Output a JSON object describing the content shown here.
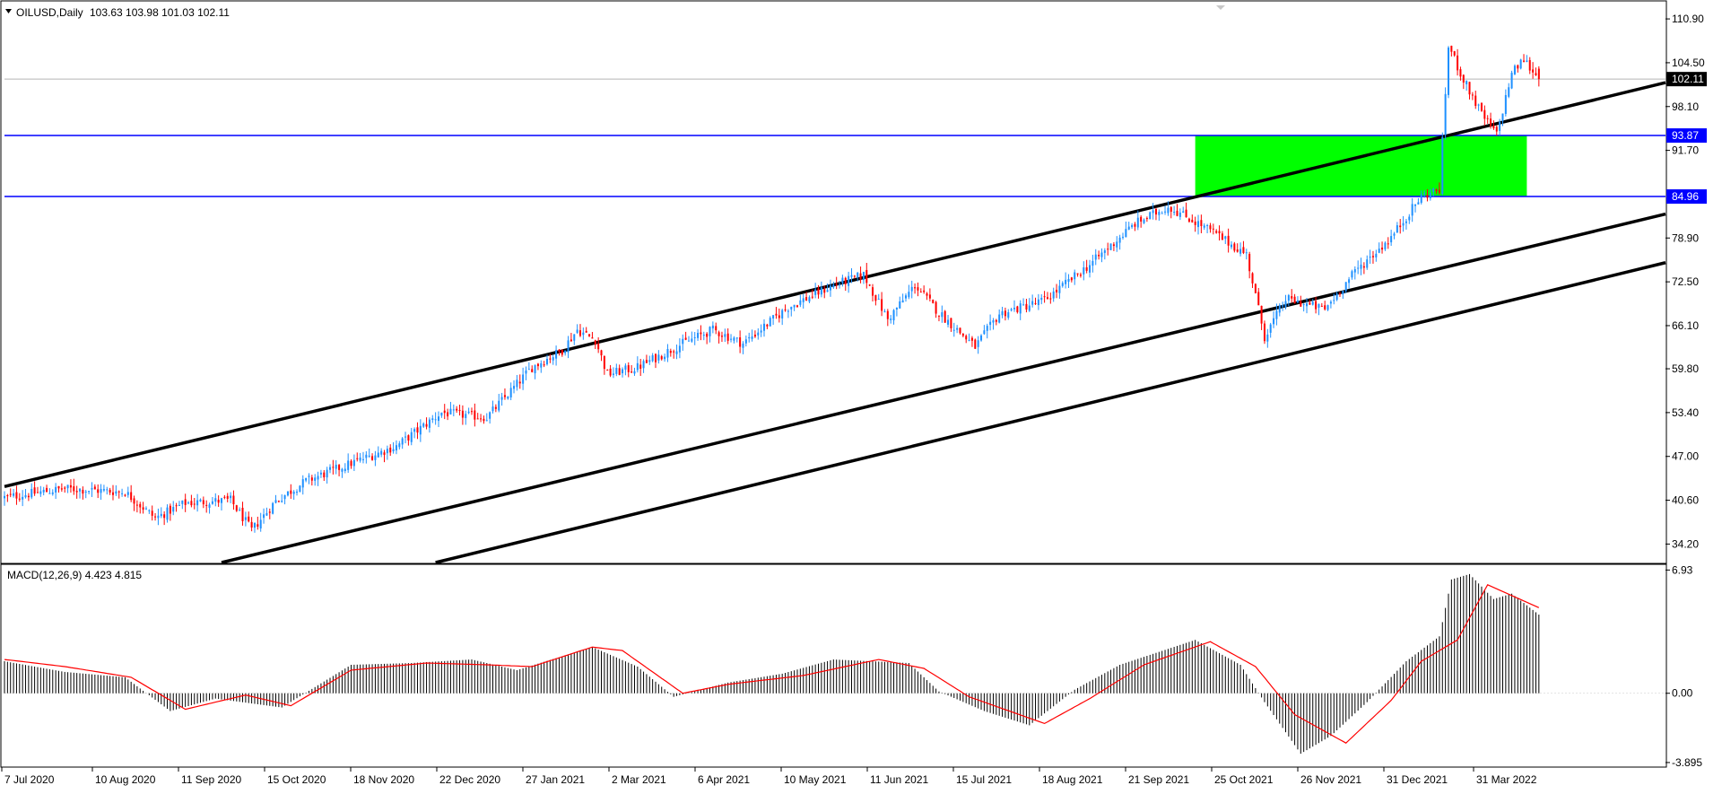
{
  "chart_data": [
    {
      "type": "candlestick",
      "header": {
        "symbol_label": "OILUSD,Daily",
        "ohlc_text": "103.63 103.98 101.03 102.11",
        "menu_icon": "triangle-down-icon"
      },
      "y_ticks": [
        "110.90",
        "104.50",
        "98.10",
        "91.70",
        "78.90",
        "72.50",
        "66.10",
        "59.80",
        "53.40",
        "47.00",
        "40.60",
        "34.20"
      ],
      "ylim": [
        31.5,
        113.4
      ],
      "x_ticks": [
        "7 Jul 2020",
        "10 Aug 2020",
        "11 Sep 2020",
        "15 Oct 2020",
        "18 Nov 2020",
        "22 Dec 2020",
        "27 Jan 2021",
        "2 Mar 2021",
        "6 Apr 2021",
        "10 May 2021",
        "11 Jun 2021",
        "15 Jul 2021",
        "18 Aug 2021",
        "21 Sep 2021",
        "25 Oct 2021",
        "26 Nov 2021",
        "31 Dec 2021",
        "31 Mar 2022"
      ],
      "price_anchors": [
        {
          "t": 0,
          "p": 41.0
        },
        {
          "t": 20,
          "p": 42.3
        },
        {
          "t": 40,
          "p": 41.8
        },
        {
          "t": 50,
          "p": 38.0
        },
        {
          "t": 60,
          "p": 40.2
        },
        {
          "t": 75,
          "p": 40.6
        },
        {
          "t": 82,
          "p": 36.2
        },
        {
          "t": 90,
          "p": 40.5
        },
        {
          "t": 100,
          "p": 43.4
        },
        {
          "t": 115,
          "p": 46.0
        },
        {
          "t": 130,
          "p": 48.5
        },
        {
          "t": 145,
          "p": 53.4
        },
        {
          "t": 160,
          "p": 52.7
        },
        {
          "t": 175,
          "p": 60.0
        },
        {
          "t": 185,
          "p": 62.5
        },
        {
          "t": 190,
          "p": 65.5
        },
        {
          "t": 196,
          "p": 64.0
        },
        {
          "t": 200,
          "p": 59.0
        },
        {
          "t": 210,
          "p": 60.0
        },
        {
          "t": 225,
          "p": 63.5
        },
        {
          "t": 235,
          "p": 65.5
        },
        {
          "t": 245,
          "p": 63.5
        },
        {
          "t": 260,
          "p": 68.8
        },
        {
          "t": 275,
          "p": 72.0
        },
        {
          "t": 285,
          "p": 73.5
        },
        {
          "t": 293,
          "p": 67.0
        },
        {
          "t": 302,
          "p": 72.0
        },
        {
          "t": 310,
          "p": 68.0
        },
        {
          "t": 322,
          "p": 63.0
        },
        {
          "t": 330,
          "p": 67.8
        },
        {
          "t": 345,
          "p": 69.8
        },
        {
          "t": 360,
          "p": 75.0
        },
        {
          "t": 375,
          "p": 81.0
        },
        {
          "t": 386,
          "p": 83.5
        },
        {
          "t": 400,
          "p": 80.0
        },
        {
          "t": 412,
          "p": 76.5
        },
        {
          "t": 418,
          "p": 64.5
        },
        {
          "t": 425,
          "p": 70.0
        },
        {
          "t": 438,
          "p": 68.5
        },
        {
          "t": 448,
          "p": 74.0
        },
        {
          "t": 460,
          "p": 79.0
        },
        {
          "t": 470,
          "p": 85.0
        },
        {
          "t": 476,
          "p": 86.0
        },
        {
          "t": 479,
          "p": 107.0
        },
        {
          "t": 484,
          "p": 102.0
        },
        {
          "t": 490,
          "p": 97.0
        },
        {
          "t": 495,
          "p": 94.0
        },
        {
          "t": 500,
          "p": 103.0
        },
        {
          "t": 504,
          "p": 105.0
        },
        {
          "t": 509,
          "p": 102.11
        }
      ],
      "last_price": "102.11",
      "horizontal_levels": [
        {
          "price": 93.87,
          "label": "93.87",
          "color": "#0000ff"
        },
        {
          "price": 84.96,
          "label": "84.96",
          "color": "#0000ff"
        }
      ],
      "zone": {
        "t_start": 395,
        "t_end": 505,
        "price_low": 84.96,
        "price_high": 93.87,
        "color": "#00ff00"
      },
      "trendlines": [
        {
          "t1": 0,
          "p1": 42.6,
          "t2": 551,
          "p2": 101.6
        },
        {
          "t1": 72,
          "p1": 31.5,
          "t2": 551,
          "p2": 82.4
        },
        {
          "t1": 143,
          "p1": 31.5,
          "t2": 551,
          "p2": 75.3
        }
      ],
      "colors": {
        "up": "#1e90ff",
        "down": "#ff0000",
        "trendline": "#000000",
        "level_line": "#0000ff"
      }
    },
    {
      "type": "macd",
      "label": "MACD(12,26,9) 4.423 4.815",
      "y_ticks": [
        "6.93",
        "0.00",
        "-3.895"
      ],
      "ylim": [
        -4.0,
        7.2
      ],
      "histogram_anchors": [
        {
          "t": 0,
          "v": 1.8
        },
        {
          "t": 20,
          "v": 1.2
        },
        {
          "t": 40,
          "v": 0.9
        },
        {
          "t": 55,
          "v": -1.0
        },
        {
          "t": 70,
          "v": -0.3
        },
        {
          "t": 92,
          "v": -0.8
        },
        {
          "t": 115,
          "v": 1.6
        },
        {
          "t": 135,
          "v": 1.7
        },
        {
          "t": 155,
          "v": 1.9
        },
        {
          "t": 170,
          "v": 1.3
        },
        {
          "t": 195,
          "v": 2.6
        },
        {
          "t": 210,
          "v": 1.5
        },
        {
          "t": 222,
          "v": -0.2
        },
        {
          "t": 240,
          "v": 0.6
        },
        {
          "t": 258,
          "v": 1.1
        },
        {
          "t": 275,
          "v": 1.9
        },
        {
          "t": 300,
          "v": 1.7
        },
        {
          "t": 310,
          "v": 0.1
        },
        {
          "t": 325,
          "v": -1.0
        },
        {
          "t": 340,
          "v": -1.8
        },
        {
          "t": 355,
          "v": 0.2
        },
        {
          "t": 370,
          "v": 1.6
        },
        {
          "t": 395,
          "v": 3.0
        },
        {
          "t": 410,
          "v": 1.6
        },
        {
          "t": 418,
          "v": -0.5
        },
        {
          "t": 430,
          "v": -3.4
        },
        {
          "t": 440,
          "v": -2.4
        },
        {
          "t": 452,
          "v": -0.5
        },
        {
          "t": 465,
          "v": 1.8
        },
        {
          "t": 476,
          "v": 3.2
        },
        {
          "t": 480,
          "v": 6.4
        },
        {
          "t": 486,
          "v": 6.7
        },
        {
          "t": 494,
          "v": 5.3
        },
        {
          "t": 500,
          "v": 5.6
        },
        {
          "t": 509,
          "v": 4.423
        }
      ],
      "signal_anchors": [
        {
          "t": 0,
          "v": 1.9
        },
        {
          "t": 20,
          "v": 1.5
        },
        {
          "t": 42,
          "v": 0.9
        },
        {
          "t": 60,
          "v": -0.9
        },
        {
          "t": 80,
          "v": -0.1
        },
        {
          "t": 95,
          "v": -0.7
        },
        {
          "t": 115,
          "v": 1.3
        },
        {
          "t": 140,
          "v": 1.7
        },
        {
          "t": 160,
          "v": 1.6
        },
        {
          "t": 175,
          "v": 1.5
        },
        {
          "t": 195,
          "v": 2.6
        },
        {
          "t": 205,
          "v": 2.4
        },
        {
          "t": 225,
          "v": 0.0
        },
        {
          "t": 240,
          "v": 0.5
        },
        {
          "t": 265,
          "v": 1.0
        },
        {
          "t": 290,
          "v": 1.9
        },
        {
          "t": 305,
          "v": 1.4
        },
        {
          "t": 320,
          "v": -0.2
        },
        {
          "t": 345,
          "v": -1.7
        },
        {
          "t": 360,
          "v": -0.3
        },
        {
          "t": 378,
          "v": 1.6
        },
        {
          "t": 400,
          "v": 2.9
        },
        {
          "t": 415,
          "v": 1.5
        },
        {
          "t": 428,
          "v": -1.2
        },
        {
          "t": 445,
          "v": -2.8
        },
        {
          "t": 460,
          "v": -0.4
        },
        {
          "t": 470,
          "v": 1.8
        },
        {
          "t": 482,
          "v": 3.0
        },
        {
          "t": 492,
          "v": 6.1
        },
        {
          "t": 509,
          "v": 4.815
        }
      ],
      "colors": {
        "histogram": "#000000",
        "signal": "#ff0000"
      }
    }
  ]
}
